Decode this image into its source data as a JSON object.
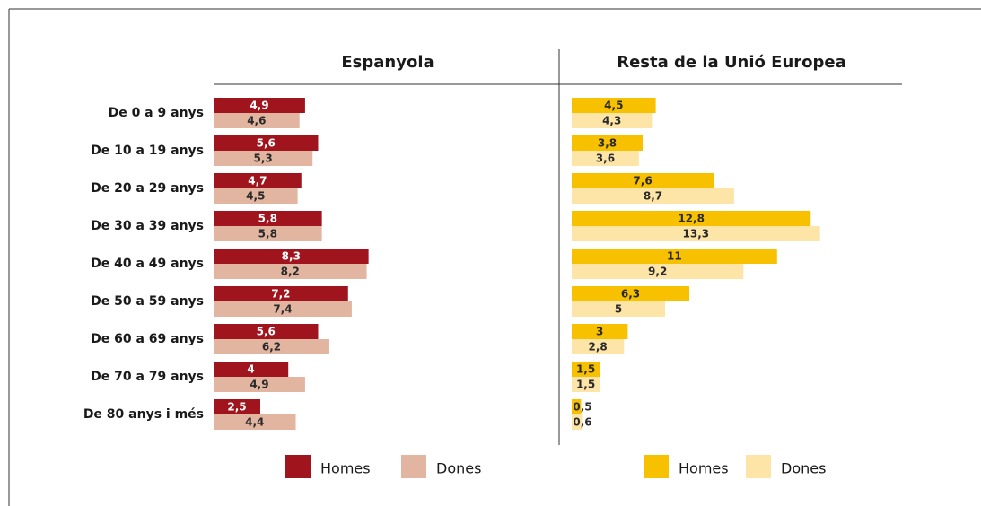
{
  "chart_data": [
    {
      "type": "bar",
      "orientation": "horizontal",
      "title": "Espanyola",
      "categories": [
        "De 0 a 9 anys",
        "De 10 a 19 anys",
        "De 20 a 29 anys",
        "De 30 a 39 anys",
        "De 40 a 49 anys",
        "De 50 a 59 anys",
        "De 60 a 69 anys",
        "De 70 a 79 anys",
        "De 80 anys i més"
      ],
      "series": [
        {
          "name": "Homes",
          "color": "#a0141d",
          "label_color": "#ffffff",
          "values": [
            4.9,
            5.6,
            4.7,
            5.8,
            8.3,
            7.2,
            5.6,
            4,
            2.5
          ],
          "value_labels": [
            "4,9",
            "5,6",
            "4,7",
            "5,8",
            "8,3",
            "7,2",
            "5,6",
            "4",
            "2,5"
          ]
        },
        {
          "name": "Dones",
          "color": "#e2b5a1",
          "label_color": "#2a2a2a",
          "values": [
            4.6,
            5.3,
            4.5,
            5.8,
            8.2,
            7.4,
            6.2,
            4.9,
            4.4
          ],
          "value_labels": [
            "4,6",
            "5,3",
            "4,5",
            "5,8",
            "8,2",
            "7,4",
            "6,2",
            "4,9",
            "4,4"
          ]
        }
      ]
    },
    {
      "type": "bar",
      "orientation": "horizontal",
      "title": "Resta de la Unió Europea",
      "series": [
        {
          "name": "Homes",
          "color": "#f8c100",
          "label_color": "#2a2a2a",
          "values": [
            4.5,
            3.8,
            7.6,
            12.8,
            11,
            6.3,
            3,
            1.5,
            0.5
          ],
          "value_labels": [
            "4,5",
            "3,8",
            "7,6",
            "12,8",
            "11",
            "6,3",
            "3",
            "1,5",
            "0,5"
          ]
        },
        {
          "name": "Dones",
          "color": "#fde5a8",
          "label_color": "#2a2a2a",
          "values": [
            4.3,
            3.6,
            8.7,
            13.3,
            9.2,
            5,
            2.8,
            1.5,
            0.6
          ],
          "value_labels": [
            "4,3",
            "3,6",
            "8,7",
            "13,3",
            "9,2",
            "5",
            "2,8",
            "1,5",
            "0,6"
          ]
        }
      ]
    }
  ]
}
